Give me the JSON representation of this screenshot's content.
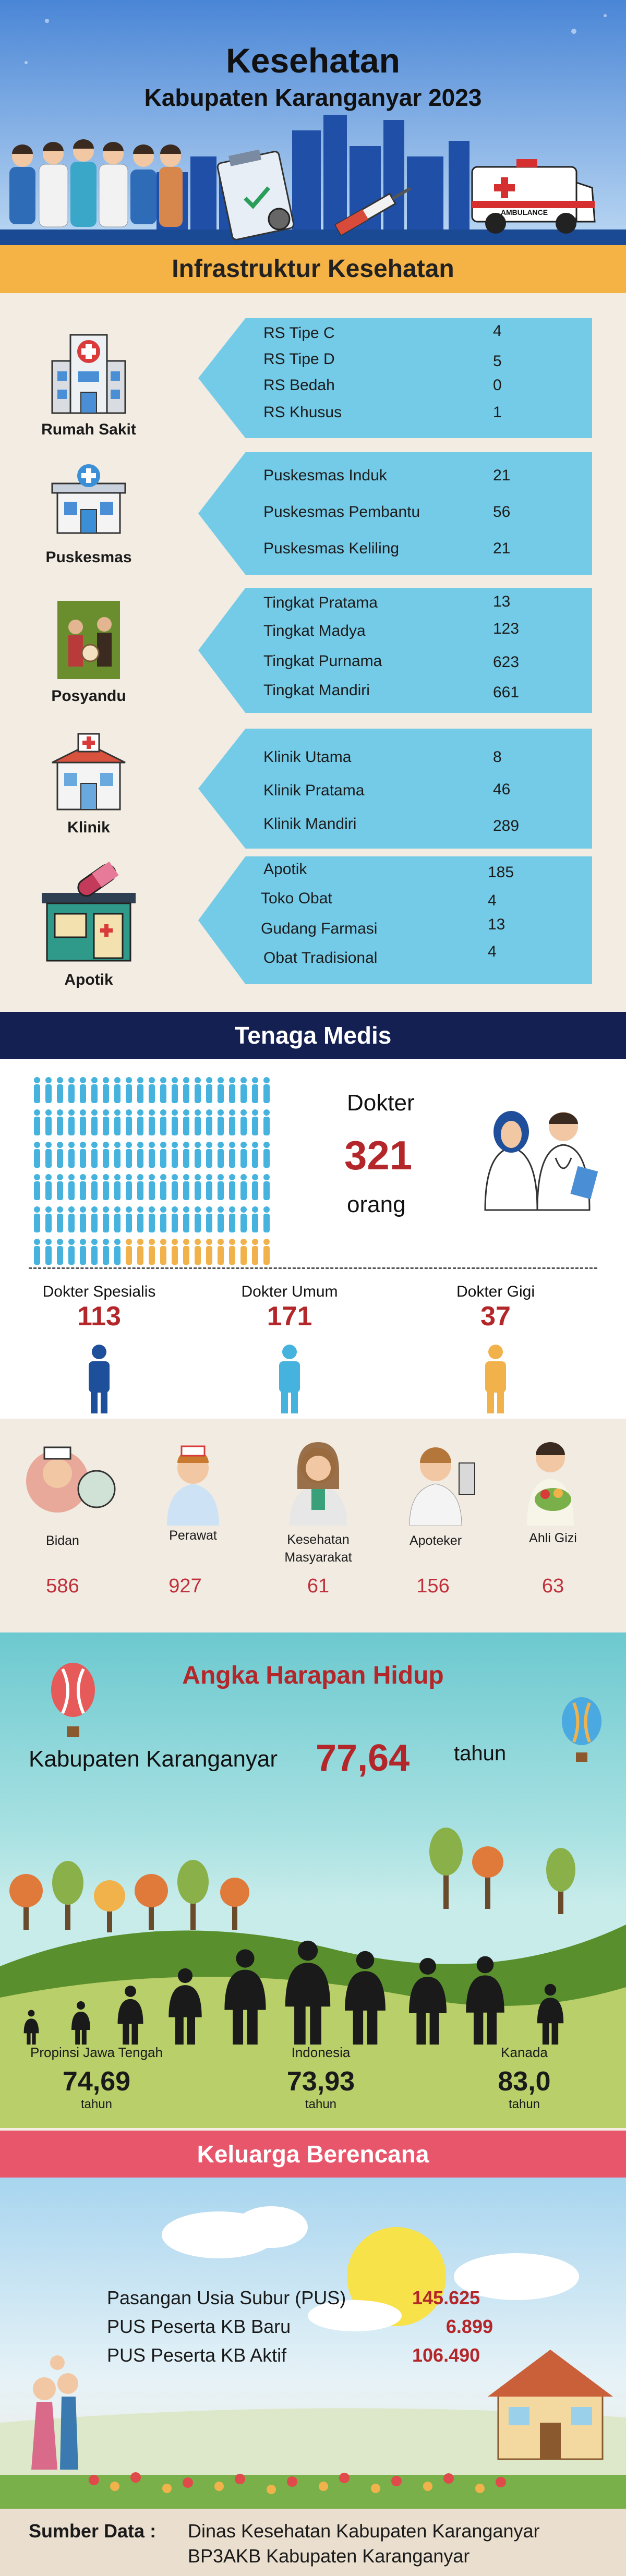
{
  "header": {
    "title": "Kesehatan",
    "subtitle": "Kabupaten Karanganyar 2023",
    "ambulance_text": "AMBULANCE"
  },
  "infra": {
    "heading": "Infrastruktur Kesehatan",
    "categories": [
      {
        "name": "Rumah Sakit",
        "items": [
          {
            "label": "RS Tipe C",
            "value": "4"
          },
          {
            "label": "RS Tipe D",
            "value": "5"
          },
          {
            "label": "RS Bedah",
            "value": "0"
          },
          {
            "label": "RS Khusus",
            "value": "1"
          }
        ]
      },
      {
        "name": "Puskesmas",
        "items": [
          {
            "label": "Puskesmas Induk",
            "value": "21"
          },
          {
            "label": "Puskesmas Pembantu",
            "value": "56"
          },
          {
            "label": "Puskesmas Keliling",
            "value": "21"
          }
        ]
      },
      {
        "name": "Posyandu",
        "items": [
          {
            "label": "Tingkat Pratama",
            "value": "13"
          },
          {
            "label": "Tingkat Madya",
            "value": "123"
          },
          {
            "label": "Tingkat Purnama",
            "value": "623"
          },
          {
            "label": "Tingkat Mandiri",
            "value": "661"
          }
        ]
      },
      {
        "name": "Klinik",
        "items": [
          {
            "label": "Klinik Utama",
            "value": "8"
          },
          {
            "label": "Klinik Pratama",
            "value": "46"
          },
          {
            "label": "Klinik Mandiri",
            "value": "289"
          }
        ]
      },
      {
        "name": "Apotik",
        "items": [
          {
            "label": "Apotik",
            "value": "185"
          },
          {
            "label": "Toko Obat",
            "value": "4"
          },
          {
            "label": "Gudang Farmasi",
            "value": "13"
          },
          {
            "label": "Obat Tradisional",
            "value": "4"
          }
        ]
      }
    ]
  },
  "medis": {
    "heading": "Tenaga Medis",
    "dokter_label": "Dokter",
    "dokter_total": "321",
    "dokter_unit": "orang",
    "doctor_types": [
      {
        "label": "Dokter Spesialis",
        "value": "113",
        "color": "#1d4f9a"
      },
      {
        "label": "Dokter Umum",
        "value": "171",
        "color": "#45b3de"
      },
      {
        "label": "Dokter Gigi",
        "value": "37",
        "color": "#f2b24b"
      }
    ],
    "staff": [
      {
        "label": "Bidan",
        "value": "586"
      },
      {
        "label": "Perawat",
        "value": "927"
      },
      {
        "label": "Kesehatan Masyarakat",
        "value": "61"
      },
      {
        "label": "Apoteker",
        "value": "156"
      },
      {
        "label": "Ahli Gizi",
        "value": "63"
      }
    ]
  },
  "ahh": {
    "heading": "Angka Harapan Hidup",
    "main_label": "Kabupaten Karanganyar",
    "main_value": "77,64",
    "main_unit": "tahun",
    "compare": [
      {
        "label": "Propinsi Jawa Tengah",
        "value": "74,69",
        "unit": "tahun"
      },
      {
        "label": "Indonesia",
        "value": "73,93",
        "unit": "tahun"
      },
      {
        "label": "Kanada",
        "value": "83,0",
        "unit": "tahun"
      }
    ]
  },
  "kb": {
    "heading": "Keluarga Berencana",
    "items": [
      {
        "label": "Pasangan  Usia Subur (PUS)",
        "value": "145.625"
      },
      {
        "label": "PUS Peserta KB Baru",
        "value": "6.899"
      },
      {
        "label": "PUS Peserta KB Aktif",
        "value": "106.490"
      }
    ]
  },
  "footer": {
    "label": "Sumber Data :",
    "sources": [
      "Dinas Kesehatan Kabupaten Karanganyar",
      "BP3AKB Kabupaten Karanganyar"
    ]
  },
  "colors": {
    "yellow": "#f5b346",
    "navy": "#141f52",
    "pink": "#e8566c",
    "panel": "#74cbe8",
    "red": "#b3262a"
  }
}
